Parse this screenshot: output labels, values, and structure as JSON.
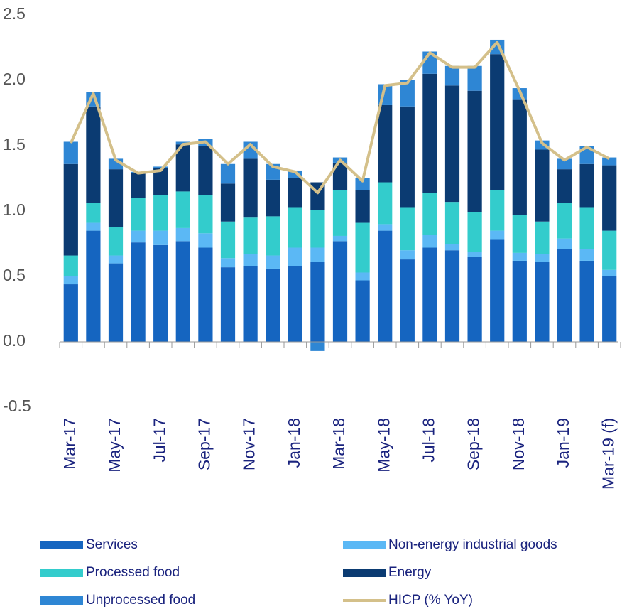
{
  "chart_data": {
    "type": "bar",
    "stacked": true,
    "categories": [
      "Mar-17",
      null,
      "May-17",
      null,
      "Jul-17",
      null,
      "Sep-17",
      null,
      "Nov-17",
      null,
      "Jan-18",
      null,
      "Mar-18",
      null,
      "May-18",
      null,
      "Jul-18",
      null,
      "Sep-18",
      null,
      "Nov-18",
      null,
      "Jan-19",
      null,
      "Mar-19 (f)"
    ],
    "series": [
      {
        "name": "Services",
        "color": "#1565c0",
        "values": [
          0.44,
          0.85,
          0.6,
          0.76,
          0.74,
          0.77,
          0.72,
          0.57,
          0.58,
          0.56,
          0.58,
          0.61,
          0.77,
          0.47,
          0.85,
          0.63,
          0.72,
          0.7,
          0.65,
          0.78,
          0.62,
          0.61,
          0.71,
          0.62,
          0.5
        ]
      },
      {
        "name": "Non-energy industrial goods",
        "color": "#5bb8f5",
        "values": [
          0.06,
          0.06,
          0.06,
          0.09,
          0.11,
          0.1,
          0.11,
          0.07,
          0.09,
          0.1,
          0.14,
          0.11,
          0.04,
          0.06,
          0.05,
          0.07,
          0.1,
          0.05,
          0.04,
          0.07,
          0.06,
          0.06,
          0.08,
          0.09,
          0.05
        ]
      },
      {
        "name": "Processed food",
        "color": "#33cccc",
        "values": [
          0.16,
          0.15,
          0.22,
          0.25,
          0.27,
          0.28,
          0.29,
          0.28,
          0.28,
          0.3,
          0.31,
          0.29,
          0.35,
          0.38,
          0.32,
          0.33,
          0.32,
          0.32,
          0.3,
          0.31,
          0.29,
          0.25,
          0.27,
          0.32,
          0.3
        ]
      },
      {
        "name": "Energy",
        "color": "#0b3b72",
        "values": [
          0.7,
          0.74,
          0.44,
          0.19,
          0.21,
          0.36,
          0.38,
          0.29,
          0.45,
          0.28,
          0.22,
          0.21,
          0.21,
          0.25,
          0.59,
          0.77,
          0.91,
          0.89,
          0.93,
          1.04,
          0.88,
          0.55,
          0.26,
          0.33,
          0.5
        ]
      },
      {
        "name": "Unprocessed food",
        "color": "#2e86d4",
        "values": [
          0.17,
          0.11,
          0.08,
          0.01,
          0.01,
          0.02,
          0.05,
          0.15,
          0.13,
          0.12,
          0.06,
          -0.07,
          0.04,
          0.09,
          0.16,
          0.2,
          0.17,
          0.15,
          0.19,
          0.11,
          0.09,
          0.07,
          0.08,
          0.14,
          0.06
        ]
      },
      {
        "name": "HICP (% YoY)",
        "color": "#d4c08a",
        "type": "line",
        "values": [
          1.52,
          1.9,
          1.39,
          1.29,
          1.31,
          1.51,
          1.53,
          1.36,
          1.51,
          1.34,
          1.3,
          1.14,
          1.39,
          1.23,
          1.96,
          1.98,
          2.21,
          2.1,
          2.1,
          2.29,
          1.92,
          1.52,
          1.39,
          1.49,
          1.4
        ]
      }
    ],
    "ylim": [
      -0.5,
      2.5
    ],
    "yticks": [
      {
        "value": -0.5,
        "label": "-0.5"
      },
      {
        "value": 0,
        "label": "0.0"
      },
      {
        "value": 0.5,
        "label": "0.5"
      },
      {
        "value": 1,
        "label": "1.0"
      },
      {
        "value": 1.5,
        "label": "1.5"
      },
      {
        "value": 2,
        "label": "2.0"
      },
      {
        "value": 2.5,
        "label": "2.5"
      }
    ],
    "grid": false,
    "legend": "bottom"
  }
}
